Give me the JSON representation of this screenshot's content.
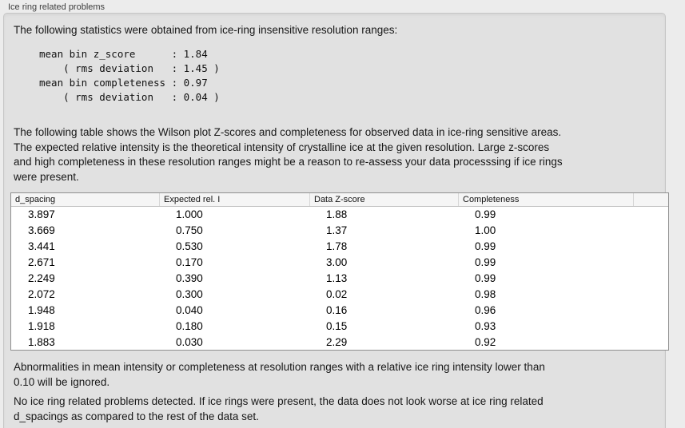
{
  "panel": {
    "title": "Ice ring related problems",
    "intro": "The following statistics were obtained from ice-ring insensitive resolution ranges:",
    "stats_block": "mean bin z_score      : 1.84\n    ( rms deviation   : 1.45 )\nmean bin completeness : 0.97\n    ( rms deviation   : 0.04 )",
    "table_description": "The following table shows the Wilson plot Z-scores and completeness for observed data in ice-ring sensitive areas.\nThe expected relative intensity is the theoretical intensity of crystalline ice at the given resolution. Large z-scores\nand high completeness in these resolution ranges might be a reason to re-assess your data processsing if ice rings\nwere present.",
    "ignore_note": "Abnormalities in mean intensity or completeness at resolution ranges with a relative ice ring intensity lower than\n0.10 will be ignored.",
    "conclusion": "No ice ring related problems detected. If ice rings were present, the data does not look worse at ice ring related\nd_spacings as compared to the rest of the data set."
  },
  "table": {
    "columns": [
      "d_spacing",
      "Expected rel. I",
      "Data Z-score",
      "Completeness",
      ""
    ],
    "rows": [
      [
        "3.897",
        "1.000",
        "1.88",
        "0.99"
      ],
      [
        "3.669",
        "0.750",
        "1.37",
        "1.00"
      ],
      [
        "3.441",
        "0.530",
        "1.78",
        "0.99"
      ],
      [
        "2.671",
        "0.170",
        "3.00",
        "0.99"
      ],
      [
        "2.249",
        "0.390",
        "1.13",
        "0.99"
      ],
      [
        "2.072",
        "0.300",
        "0.02",
        "0.98"
      ],
      [
        "1.948",
        "0.040",
        "0.16",
        "0.96"
      ],
      [
        "1.918",
        "0.180",
        "0.15",
        "0.93"
      ],
      [
        "1.883",
        "0.030",
        "2.29",
        "0.92"
      ]
    ]
  },
  "colors": {
    "page_bg": "#ececec",
    "panel_bg": "#e1e1e1",
    "panel_border": "#c6c6c6",
    "table_border": "#8f8f8f",
    "header_bg": "#f5f5f5",
    "text": "#171717"
  }
}
